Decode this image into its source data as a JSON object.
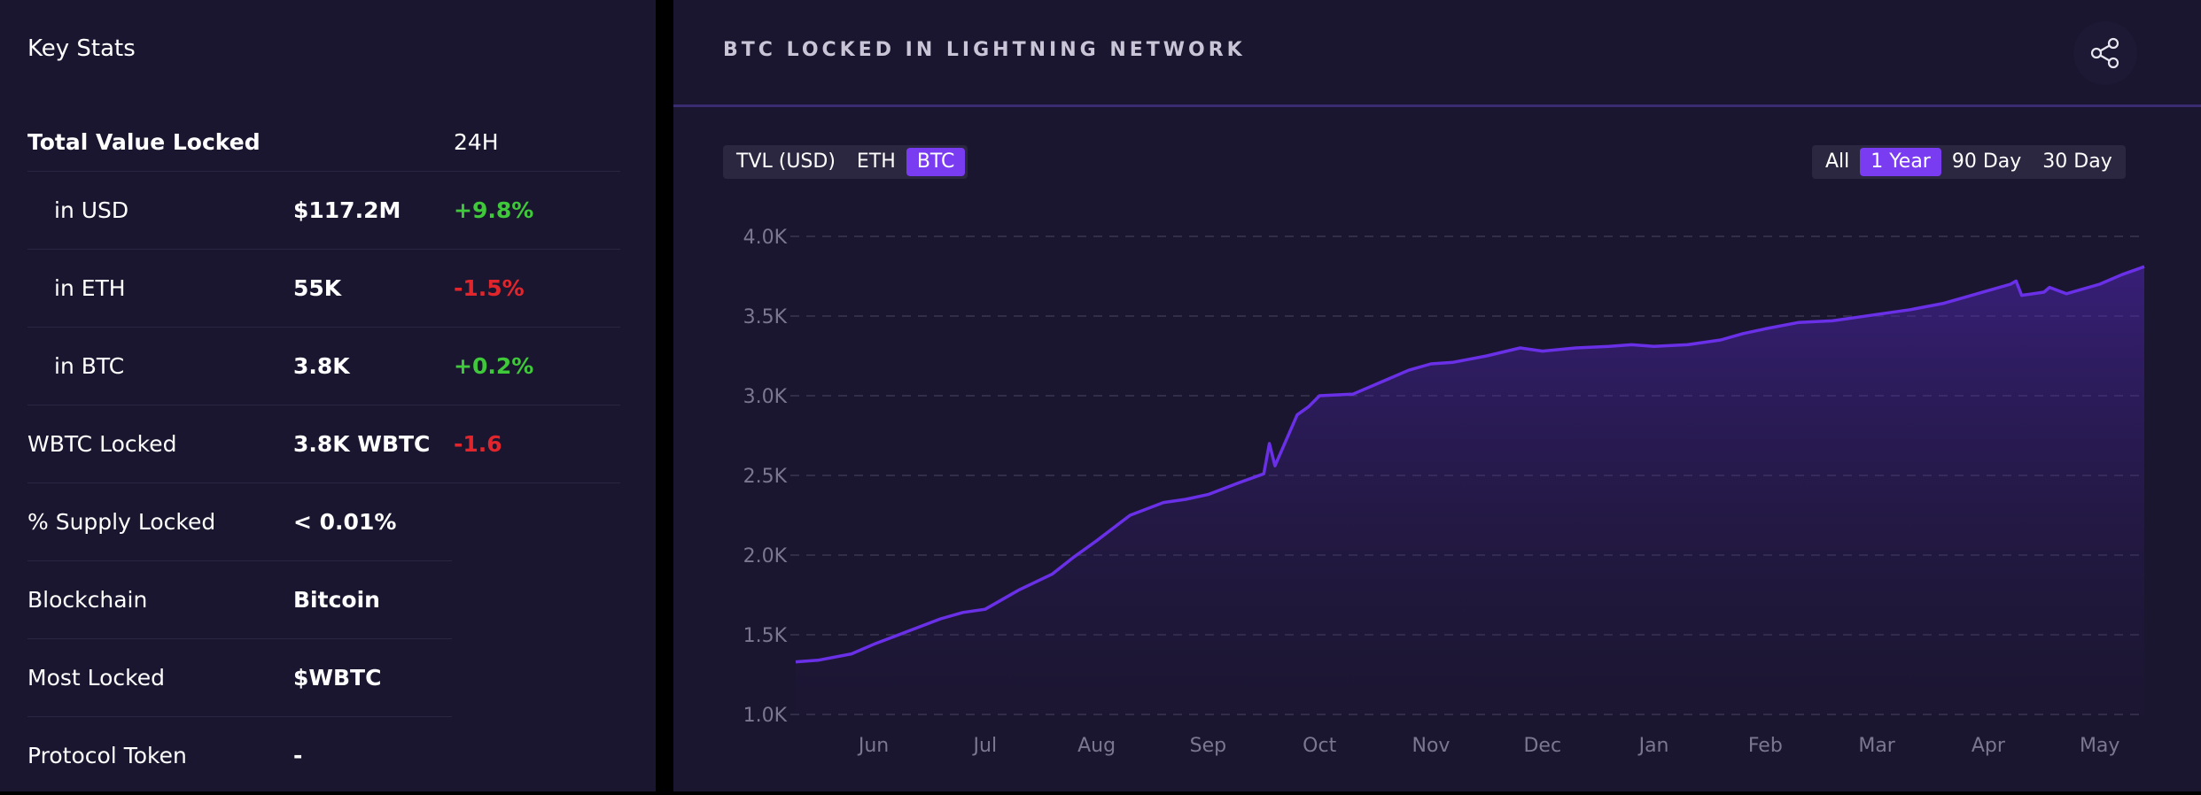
{
  "key_stats": {
    "title": "Key Stats",
    "header": {
      "label": "Total Value Locked",
      "period": "24H"
    },
    "rows": [
      {
        "label": "in USD",
        "value": "$117.2M",
        "change": "+9.8%",
        "change_color": "#3ec83a"
      },
      {
        "label": "in ETH",
        "value": "55K",
        "change": "-1.5%",
        "change_color": "#e0262c"
      },
      {
        "label": "in BTC",
        "value": "3.8K",
        "change": "+0.2%",
        "change_color": "#3ec83a"
      },
      {
        "label": "WBTC Locked",
        "value": "3.8K WBTC",
        "change": "-1.6",
        "change_color": "#e0262c"
      },
      {
        "label": "% Supply Locked",
        "value": "< 0.01%"
      },
      {
        "label": "Blockchain",
        "value": "Bitcoin"
      },
      {
        "label": "Most Locked",
        "value": "$WBTC"
      },
      {
        "label": "Protocol Token",
        "value": "-"
      }
    ]
  },
  "chart_panel": {
    "title": "BTC LOCKED IN LIGHTNING NETWORK",
    "share_icon": "share-icon",
    "currency_options": [
      "TVL (USD)",
      "ETH",
      "BTC"
    ],
    "currency_selected": "BTC",
    "range_options": [
      "All",
      "1 Year",
      "90 Day",
      "30 Day"
    ],
    "range_selected": "1 Year",
    "accent_color": "#7a3cf0",
    "line_color": "#6a30e8"
  },
  "chart_data": {
    "type": "area",
    "title": "BTC LOCKED IN LIGHTNING NETWORK",
    "xlabel": "",
    "ylabel": "",
    "ylim": [
      1000,
      4000
    ],
    "y_ticks": [
      "4.0K",
      "3.5K",
      "3.0K",
      "2.5K",
      "2.0K",
      "1.5K",
      "1.0K"
    ],
    "y_tick_values": [
      4000,
      3500,
      3000,
      2500,
      2000,
      1500,
      1000
    ],
    "x_ticks": [
      "Jun",
      "Jul",
      "Aug",
      "Sep",
      "Oct",
      "Nov",
      "Dec",
      "Jan",
      "Feb",
      "Mar",
      "Apr",
      "May"
    ],
    "x_tick_months": [
      1,
      2,
      3,
      4,
      5,
      6,
      7,
      8,
      9,
      10,
      11,
      12
    ],
    "xlim_months": [
      0.3,
      12.4
    ],
    "grid": true,
    "series": [
      {
        "x": [
          0.3,
          0.5,
          0.8,
          1.0,
          1.3,
          1.6,
          1.8,
          2.0,
          2.3,
          2.6,
          2.8,
          3.0,
          3.3,
          3.6,
          3.8,
          4.0,
          4.3,
          4.5,
          4.55,
          4.6,
          4.8,
          4.9,
          5.0,
          5.3,
          5.6,
          5.8,
          6.0,
          6.2,
          6.5,
          6.8,
          7.0,
          7.3,
          7.6,
          7.8,
          8.0,
          8.3,
          8.6,
          8.8,
          9.0,
          9.3,
          9.6,
          9.8,
          10.0,
          10.3,
          10.6,
          10.8,
          11.0,
          11.2,
          11.25,
          11.3,
          11.5,
          11.55,
          11.7,
          12.0,
          12.2,
          12.4
        ],
        "y": [
          1330,
          1340,
          1380,
          1440,
          1520,
          1600,
          1640,
          1660,
          1780,
          1880,
          1990,
          2090,
          2250,
          2330,
          2350,
          2380,
          2460,
          2510,
          2700,
          2560,
          2880,
          2930,
          3000,
          3010,
          3100,
          3160,
          3200,
          3210,
          3250,
          3300,
          3280,
          3300,
          3310,
          3320,
          3310,
          3320,
          3350,
          3390,
          3420,
          3460,
          3470,
          3490,
          3510,
          3540,
          3580,
          3620,
          3660,
          3700,
          3720,
          3630,
          3650,
          3680,
          3640,
          3700,
          3760,
          3810
        ]
      }
    ]
  }
}
